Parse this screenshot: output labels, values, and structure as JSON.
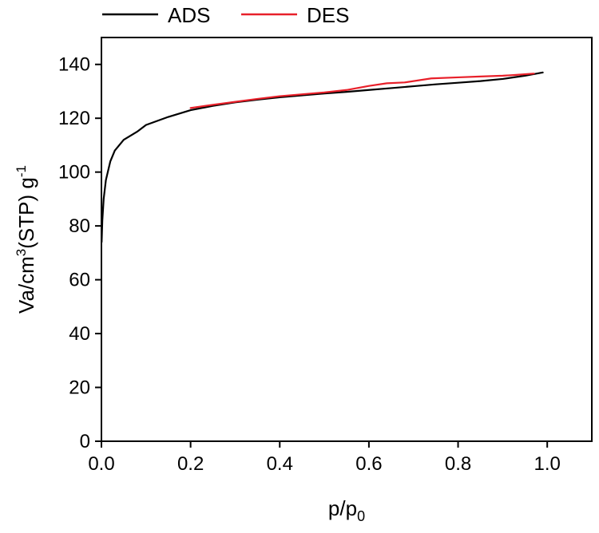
{
  "chart_data": {
    "type": "line",
    "xlabel": {
      "main": "p/p",
      "sub": "0"
    },
    "ylabel": {
      "pre": "Va/cm",
      "sup1": "3",
      "mid": "(STP) g",
      "sup2": "-1"
    },
    "xlim": [
      0,
      1.1
    ],
    "ylim": [
      0,
      150
    ],
    "xticks": [
      0.0,
      0.2,
      0.4,
      0.6,
      0.8,
      1.0
    ],
    "xtick_labels": [
      "0.0",
      "0.2",
      "0.4",
      "0.6",
      "0.8",
      "1.0"
    ],
    "yticks": [
      0,
      20,
      40,
      60,
      80,
      100,
      120,
      140
    ],
    "ytick_labels": [
      "0",
      "20",
      "40",
      "60",
      "80",
      "100",
      "120",
      "140"
    ],
    "legend_position": "top",
    "series": [
      {
        "name": "ADS",
        "color": "#000000",
        "x": [
          0.0005,
          0.002,
          0.005,
          0.01,
          0.02,
          0.03,
          0.05,
          0.08,
          0.1,
          0.15,
          0.2,
          0.25,
          0.3,
          0.35,
          0.4,
          0.45,
          0.5,
          0.55,
          0.6,
          0.65,
          0.7,
          0.75,
          0.8,
          0.85,
          0.9,
          0.95,
          0.99
        ],
        "y": [
          74,
          82,
          90,
          97,
          104,
          108,
          112,
          115,
          117.5,
          120.5,
          123,
          124.6,
          125.9,
          126.9,
          127.8,
          128.5,
          129.2,
          129.8,
          130.5,
          131.2,
          131.9,
          132.6,
          133.2,
          133.8,
          134.6,
          135.8,
          137
        ]
      },
      {
        "name": "DES",
        "color": "#e8202a",
        "x": [
          0.2,
          0.25,
          0.3,
          0.35,
          0.4,
          0.45,
          0.5,
          0.55,
          0.6,
          0.64,
          0.68,
          0.74,
          0.8,
          0.85,
          0.9,
          0.93,
          0.97
        ],
        "y": [
          123.8,
          125,
          126.1,
          127.2,
          128.2,
          128.9,
          129.6,
          130.5,
          132,
          133,
          133.3,
          134.8,
          135.2,
          135.5,
          135.8,
          136.1,
          136.6
        ]
      }
    ]
  }
}
